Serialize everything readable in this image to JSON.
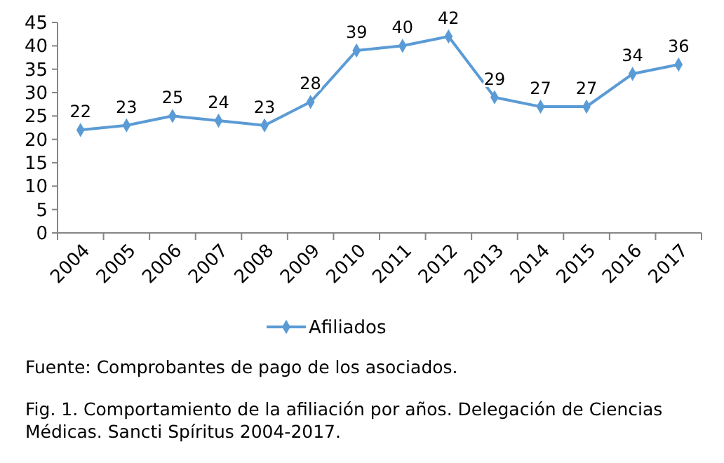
{
  "chart_data": {
    "type": "line",
    "categories": [
      "2004",
      "2005",
      "2006",
      "2007",
      "2008",
      "2009",
      "2010",
      "2011",
      "2012",
      "2013",
      "2014",
      "2015",
      "2016",
      "2017"
    ],
    "series": [
      {
        "name": "Afiliados",
        "color": "#5b9bd5",
        "values": [
          22,
          23,
          25,
          24,
          23,
          28,
          39,
          40,
          42,
          29,
          27,
          27,
          34,
          36
        ]
      }
    ],
    "ylim": [
      0,
      45
    ],
    "yticks": [
      0,
      5,
      10,
      15,
      20,
      25,
      30,
      35,
      40,
      45
    ],
    "marker": "diamond",
    "data_labels": true,
    "legend": "bottom",
    "grid": false,
    "annotations": [
      "Fuente: Comprobantes de pago de los asociados.",
      "Fig. 1. Comportamiento de la afiliación por años. Delegación de Ciencias Médicas. Sancti Spíritus 2004-2017."
    ]
  }
}
